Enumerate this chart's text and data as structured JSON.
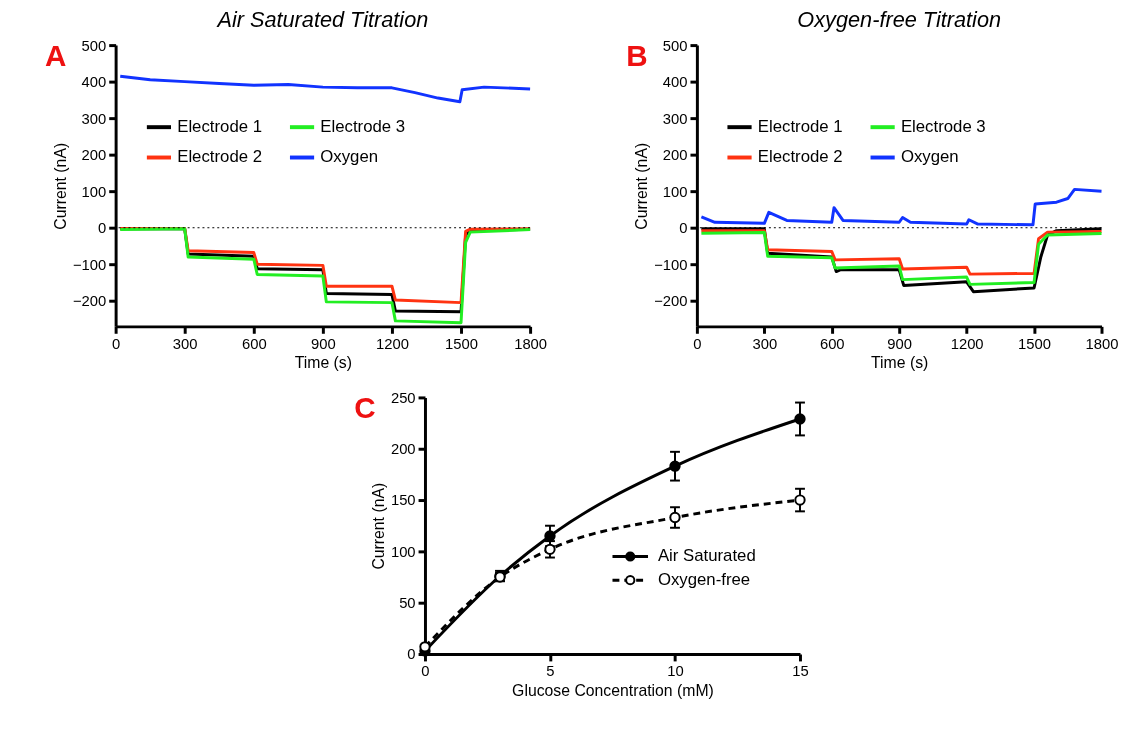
{
  "chart_data": [
    {
      "type": "line",
      "title": "Air Saturated Titration",
      "xlabel": "Time (s)",
      "ylabel": "Current (nA)",
      "annotations": [
        "A"
      ],
      "xlim": [
        0,
        1800
      ],
      "xticks": [
        0,
        300,
        600,
        900,
        1200,
        1500,
        1800
      ],
      "ylim": [
        -270,
        500
      ],
      "yticks": [
        -200,
        -100,
        0,
        100,
        200,
        300,
        400,
        500
      ],
      "legend": "top left",
      "line_style": "solid",
      "ref_lines": [
        {
          "axis": "y",
          "value": 0,
          "color": "#000000",
          "line_style": "dotted"
        }
      ],
      "series": [
        {
          "name": "Electrode 1",
          "color": "#000000",
          "x": [
            20,
            300,
            315,
            600,
            615,
            900,
            915,
            1200,
            1215,
            1500,
            1520,
            1540,
            1800
          ],
          "values": [
            -3,
            -3,
            -72,
            -78,
            -112,
            -115,
            -180,
            -183,
            -228,
            -230,
            -20,
            -8,
            -4
          ]
        },
        {
          "name": "Electrode 2",
          "color": "#ff3311",
          "x": [
            20,
            300,
            315,
            600,
            615,
            900,
            915,
            1200,
            1215,
            1500,
            1520,
            1540,
            1800
          ],
          "values": [
            -2,
            -2,
            -63,
            -68,
            -100,
            -103,
            -160,
            -160,
            -198,
            -205,
            -10,
            -4,
            -3
          ]
        },
        {
          "name": "Electrode 3",
          "color": "#22ee22",
          "x": [
            20,
            300,
            315,
            600,
            615,
            900,
            915,
            1200,
            1215,
            1500,
            1520,
            1540,
            1800
          ],
          "values": [
            -5,
            -3,
            -80,
            -86,
            -128,
            -132,
            -203,
            -205,
            -255,
            -260,
            -40,
            -12,
            -5
          ]
        },
        {
          "name": "Oxygen",
          "color": "#1133ff",
          "x": [
            20,
            150,
            300,
            450,
            600,
            750,
            900,
            1050,
            1200,
            1300,
            1400,
            1495,
            1505,
            1600,
            1800
          ],
          "values": [
            415,
            405,
            400,
            395,
            390,
            392,
            385,
            383,
            383,
            370,
            355,
            345,
            378,
            385,
            380
          ]
        }
      ]
    },
    {
      "type": "line",
      "title": "Oxygen-free Titration",
      "xlabel": "Time (s)",
      "ylabel": "Current (nA)",
      "annotations": [
        "B"
      ],
      "xlim": [
        0,
        1800
      ],
      "xticks": [
        0,
        300,
        600,
        900,
        1200,
        1500,
        1800
      ],
      "ylim": [
        -270,
        500
      ],
      "yticks": [
        -200,
        -100,
        0,
        100,
        200,
        300,
        400,
        500
      ],
      "legend": "top left",
      "line_style": "solid",
      "ref_lines": [
        {
          "axis": "y",
          "value": 0,
          "color": "#000000",
          "line_style": "dotted"
        }
      ],
      "series": [
        {
          "name": "Electrode 1",
          "color": "#000000",
          "x": [
            20,
            300,
            315,
            600,
            620,
            640,
            900,
            920,
            1200,
            1230,
            1500,
            1530,
            1560,
            1600,
            1800
          ],
          "values": [
            -3,
            -3,
            -70,
            -80,
            -120,
            -115,
            -115,
            -158,
            -148,
            -175,
            -165,
            -80,
            -20,
            -8,
            -3
          ]
        },
        {
          "name": "Electrode 2",
          "color": "#ff3311",
          "x": [
            20,
            300,
            315,
            600,
            615,
            900,
            915,
            1200,
            1215,
            1500,
            1520,
            1560,
            1800
          ],
          "values": [
            -8,
            -8,
            -60,
            -65,
            -88,
            -85,
            -113,
            -108,
            -127,
            -125,
            -30,
            -12,
            -10
          ]
        },
        {
          "name": "Electrode 3",
          "color": "#22ee22",
          "x": [
            20,
            300,
            315,
            600,
            615,
            900,
            915,
            1200,
            1215,
            1500,
            1520,
            1560,
            1800
          ],
          "values": [
            -15,
            -13,
            -78,
            -82,
            -110,
            -105,
            -142,
            -135,
            -155,
            -150,
            -45,
            -20,
            -16
          ]
        },
        {
          "name": "Oxygen",
          "color": "#1133ff",
          "x": [
            20,
            80,
            300,
            320,
            400,
            600,
            610,
            650,
            900,
            915,
            950,
            1200,
            1210,
            1250,
            1495,
            1505,
            1600,
            1650,
            1680,
            1800
          ],
          "values": [
            30,
            15,
            12,
            42,
            20,
            15,
            55,
            20,
            15,
            28,
            15,
            10,
            22,
            10,
            8,
            65,
            70,
            80,
            105,
            100
          ]
        }
      ]
    },
    {
      "type": "line",
      "xlabel": "Glucose Concentration (mM)",
      "ylabel": "Current (nA)",
      "annotations": [
        "C"
      ],
      "xlim": [
        0,
        15
      ],
      "xticks": [
        0,
        5,
        10,
        15
      ],
      "ylim": [
        0,
        250
      ],
      "yticks": [
        0,
        50,
        100,
        150,
        200,
        250
      ],
      "legend": "bottom right",
      "marker": "circle",
      "series": [
        {
          "name": "Air Saturated",
          "color": "#000000",
          "line_style": "solid",
          "x": [
            0,
            3,
            5,
            10,
            15
          ],
          "values": [
            3,
            76,
            115,
            183,
            229
          ],
          "errors": [
            null,
            5,
            10,
            14,
            16
          ]
        },
        {
          "name": "Oxygen-free",
          "color": "#000000",
          "line_style": "dashed",
          "x": [
            0,
            3,
            5,
            10,
            15
          ],
          "values": [
            7,
            75,
            102,
            133,
            150
          ],
          "errors": [
            null,
            4,
            8,
            10,
            11
          ]
        }
      ]
    }
  ]
}
